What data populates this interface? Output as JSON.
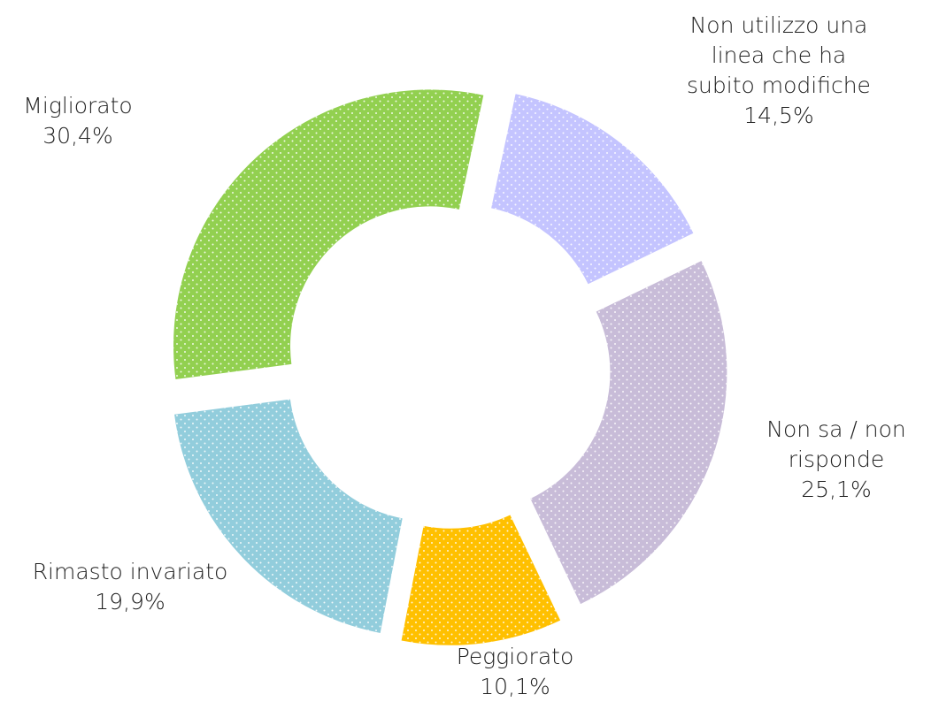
{
  "chart_data": {
    "type": "donut",
    "categories": [
      "Non utilizzo una linea che ha subito modifiche",
      "Non sa / non risponde",
      "Peggiorato",
      "Rimasto invariato",
      "Migliorato"
    ],
    "values": [
      14.5,
      25.1,
      10.1,
      19.9,
      30.4
    ],
    "value_labels": [
      "14,5%",
      "25,1%",
      "10,1%",
      "19,9%",
      "30,4%"
    ],
    "colors": [
      "#c4c4ff",
      "#c8bcd8",
      "#ffc000",
      "#92cddc",
      "#92d050"
    ]
  }
}
